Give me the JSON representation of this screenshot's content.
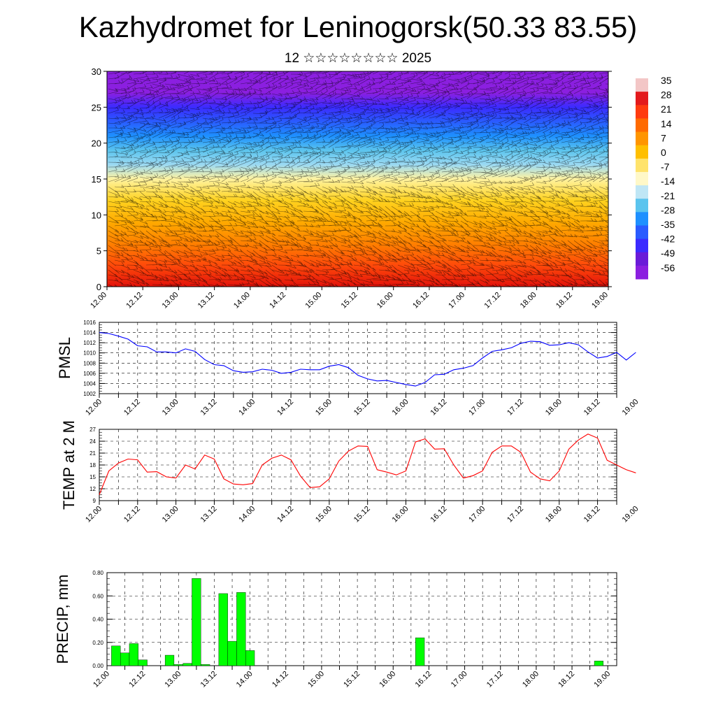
{
  "title": "Kazhydromet for Leninogorsk(50.33 83.55)",
  "subtitle": "12 ☆☆☆☆☆☆☆☆ 2025",
  "time_ticks": [
    "12.00",
    "12.12",
    "13.00",
    "13.12",
    "14.00",
    "14.12",
    "15.00",
    "15.12",
    "16.00",
    "16.12",
    "17.00",
    "17.12",
    "18.00",
    "18.12",
    "19.00"
  ],
  "colors": {
    "pmsl_line": "#0000ff",
    "temp_line": "#ff0000",
    "precip_bar": "#00ff00",
    "grid": "#000000"
  },
  "chart_data": [
    {
      "type": "heatmap",
      "title": "",
      "ylabel": "",
      "xlim": [
        0,
        168
      ],
      "ylim": [
        0,
        30
      ],
      "y_ticks": [
        0,
        5,
        10,
        15,
        20,
        25,
        30
      ],
      "colorbar_labels": [
        "35",
        "28",
        "21",
        "14",
        "7",
        "0",
        "-7",
        "-14",
        "-21",
        "-28",
        "-35",
        "-42",
        "-49",
        "-56"
      ],
      "colorbar_colors": [
        "#f3c6c6",
        "#e31a1c",
        "#ff3b0f",
        "#ff6a00",
        "#ff9500",
        "#ffbf00",
        "#ffe36b",
        "#fff8c8",
        "#bfe6f5",
        "#5bc4ee",
        "#1e90ff",
        "#2a5bff",
        "#3b2bff",
        "#6a1bd8",
        "#8b1fe0"
      ],
      "temperature_profile": [
        {
          "level": 0,
          "value": 30
        },
        {
          "level": 3,
          "value": 24
        },
        {
          "level": 6,
          "value": 17
        },
        {
          "level": 9,
          "value": 10
        },
        {
          "level": 12,
          "value": 4
        },
        {
          "level": 15,
          "value": -3
        },
        {
          "level": 17,
          "value": -15
        },
        {
          "level": 19,
          "value": -25
        },
        {
          "level": 21,
          "value": -33
        },
        {
          "level": 23,
          "value": -40
        },
        {
          "level": 25,
          "value": -45
        },
        {
          "level": 27,
          "value": -50
        },
        {
          "level": 30,
          "value": -56
        }
      ],
      "overlay": "wind barbs"
    },
    {
      "type": "line",
      "title": "",
      "ylabel": "PMSL",
      "ylim": [
        1002,
        1016
      ],
      "y_ticks": [
        "1002",
        "1004",
        "1006",
        "1008",
        "1010",
        "1012",
        "1014",
        "1016"
      ],
      "grid": true,
      "series": [
        {
          "x": [
            0,
            3,
            6,
            9,
            12,
            15,
            18,
            21,
            24,
            27,
            30,
            33,
            36,
            39,
            42,
            45,
            48,
            51,
            54,
            57,
            60,
            63,
            66,
            69,
            72,
            75,
            78,
            81,
            84,
            87,
            90,
            93,
            96,
            99,
            102,
            105,
            108,
            111,
            114,
            117,
            120,
            123,
            126,
            129,
            132,
            135,
            138,
            141,
            144,
            147,
            150,
            153,
            156,
            159,
            162,
            165,
            168
          ],
          "values": [
            1014.0,
            1013.8,
            1013.3,
            1012.7,
            1011.4,
            1011.2,
            1010.2,
            1010.2,
            1010.0,
            1010.8,
            1010.3,
            1008.7,
            1007.7,
            1007.5,
            1006.5,
            1006.2,
            1006.3,
            1006.8,
            1006.6,
            1006.0,
            1006.2,
            1006.8,
            1006.7,
            1006.7,
            1007.4,
            1007.7,
            1007.1,
            1005.6,
            1004.9,
            1004.5,
            1004.6,
            1004.2,
            1003.8,
            1003.5,
            1004.2,
            1005.7,
            1005.8,
            1006.7,
            1007.0,
            1007.5,
            1009.0,
            1010.3,
            1010.6,
            1011.0,
            1011.9,
            1012.3,
            1012.2,
            1011.5,
            1011.6,
            1012.0,
            1011.6,
            1010.2,
            1009.0,
            1009.3,
            1010.1,
            1008.6,
            1010.1
          ]
        }
      ]
    },
    {
      "type": "line",
      "title": "",
      "ylabel": "TEMP at 2 M",
      "ylim": [
        9,
        27
      ],
      "y_ticks": [
        "9",
        "12",
        "15",
        "18",
        "21",
        "24",
        "27"
      ],
      "grid": true,
      "series": [
        {
          "x": [
            0,
            3,
            6,
            9,
            12,
            15,
            18,
            21,
            24,
            27,
            30,
            33,
            36,
            39,
            42,
            45,
            48,
            51,
            54,
            57,
            60,
            63,
            66,
            69,
            72,
            75,
            78,
            81,
            84,
            87,
            90,
            93,
            96,
            99,
            102,
            105,
            108,
            111,
            114,
            117,
            120,
            123,
            126,
            129,
            132,
            135,
            138,
            141,
            144,
            147,
            150,
            153,
            156,
            159,
            162,
            165,
            168
          ],
          "values": [
            10.5,
            16.5,
            18.5,
            19.5,
            19.3,
            16.2,
            16.3,
            15.0,
            14.7,
            18.0,
            17.0,
            20.5,
            19.5,
            14.5,
            13.2,
            13.0,
            13.3,
            18.0,
            19.7,
            20.5,
            19.3,
            15.2,
            12.3,
            12.5,
            14.5,
            19.0,
            21.5,
            22.8,
            22.7,
            16.8,
            16.2,
            15.5,
            16.5,
            23.8,
            24.6,
            22.0,
            22.1,
            18.0,
            14.7,
            15.3,
            16.5,
            21.2,
            22.8,
            22.8,
            21.2,
            16.2,
            14.5,
            14.0,
            16.5,
            22.0,
            24.3,
            25.8,
            24.8,
            19.2,
            18.0,
            16.8,
            16.0
          ]
        }
      ]
    },
    {
      "type": "bar",
      "title": "",
      "ylabel": "PRECIP, mm",
      "ylim": [
        0,
        0.8
      ],
      "y_ticks": [
        "0.00",
        "0.20",
        "0.40",
        "0.60",
        "0.80"
      ],
      "grid": true,
      "x": [
        3,
        6,
        9,
        12,
        15,
        18,
        21,
        24,
        27,
        30,
        33,
        36,
        39,
        42,
        45,
        48,
        51,
        54,
        57,
        60,
        63,
        66,
        69,
        72,
        75,
        78,
        81,
        84,
        87,
        90,
        93,
        96,
        99,
        102,
        105,
        108,
        111,
        114,
        117,
        120,
        123,
        126,
        129,
        132,
        135,
        138,
        141,
        144,
        147,
        150,
        153,
        156,
        159,
        162,
        165,
        168
      ],
      "values": [
        0.17,
        0.11,
        0.19,
        0.05,
        0,
        0,
        0.09,
        0.01,
        0.02,
        0.75,
        0.01,
        0,
        0.62,
        0.21,
        0.63,
        0.13,
        0,
        0,
        0,
        0,
        0,
        0,
        0,
        0,
        0,
        0,
        0,
        0,
        0,
        0,
        0,
        0,
        0,
        0,
        0.24,
        0,
        0,
        0,
        0,
        0,
        0,
        0,
        0,
        0,
        0,
        0,
        0,
        0,
        0,
        0,
        0,
        0,
        0,
        0,
        0.04,
        0
      ]
    }
  ]
}
